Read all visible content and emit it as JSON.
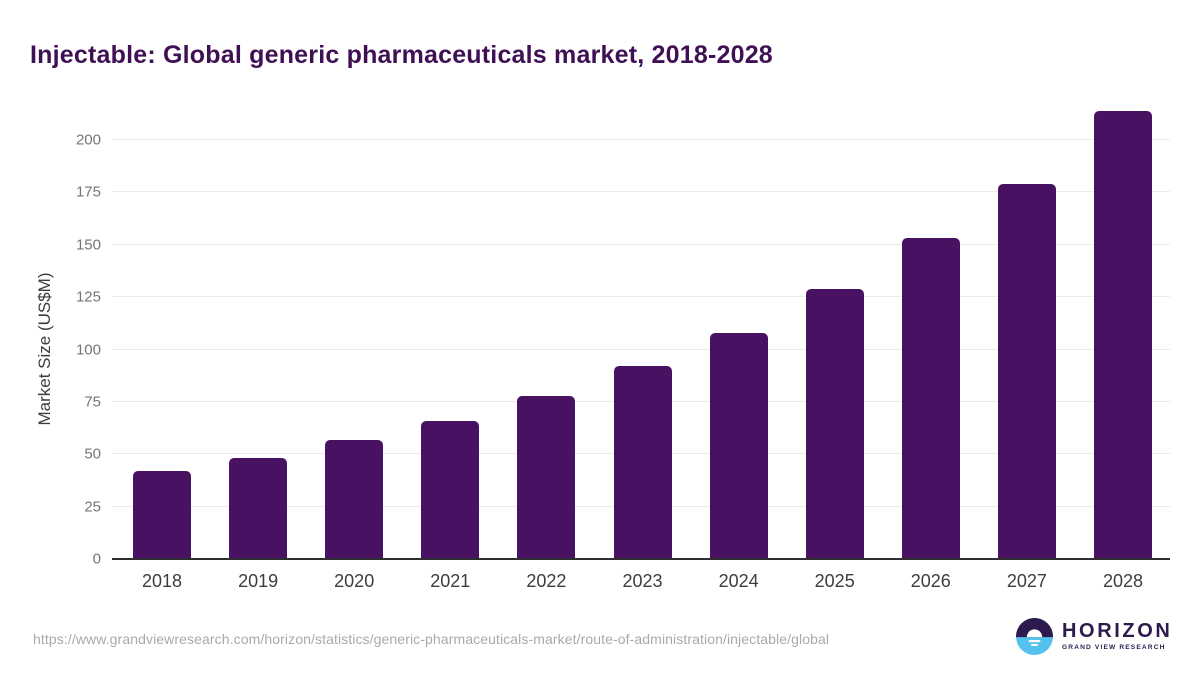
{
  "chart_data": {
    "type": "bar",
    "title": "Injectable: Global generic pharmaceuticals market, 2018-2028",
    "categories": [
      "2018",
      "2019",
      "2020",
      "2021",
      "2022",
      "2023",
      "2024",
      "2025",
      "2026",
      "2027",
      "2028"
    ],
    "values": [
      42,
      48,
      57,
      66,
      78,
      92,
      108,
      129,
      153,
      179,
      214
    ],
    "xlabel": "",
    "ylabel": "Market Size (US$M)",
    "yticks": [
      0,
      25,
      50,
      75,
      100,
      125,
      150,
      175,
      200
    ],
    "ylim": [
      0,
      225
    ],
    "grid": true,
    "legend": "none",
    "bar_color": "#481162"
  },
  "footer": {
    "source_url": "https://www.grandviewresearch.com/horizon/statistics/generic-pharmaceuticals-market/route-of-administration/injectable/global",
    "logo": {
      "name": "HORIZON",
      "tagline": "GRAND VIEW RESEARCH",
      "icon": "horizon-sunset-circle-icon",
      "color_dark": "#2e1a4d",
      "color_blue": "#55c1ef"
    }
  },
  "colors": {
    "title": "#3f1154",
    "bar": "#481162",
    "gridline": "#eaeaea",
    "axis_line": "#2e2e2e",
    "tick_label": "#757575",
    "category_label": "#3d3d3d",
    "url_text": "#a9a9a9"
  }
}
